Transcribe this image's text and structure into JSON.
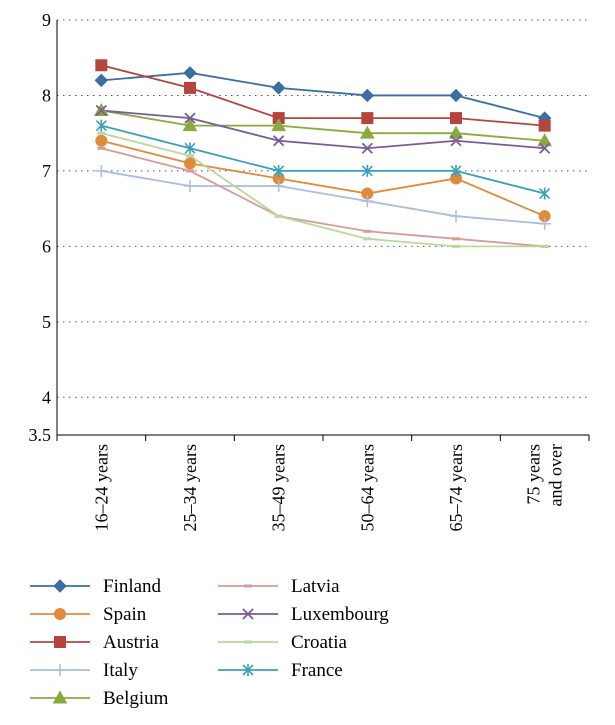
{
  "chart_data": {
    "type": "line",
    "title": "",
    "xlabel": "",
    "ylabel": "",
    "categories": [
      [
        "16–24 years"
      ],
      [
        "25–34 years"
      ],
      [
        "35–49 years"
      ],
      [
        "50–64 years"
      ],
      [
        "65–74 years"
      ],
      [
        "75 years",
        "and over"
      ]
    ],
    "ylim": [
      3.5,
      9
    ],
    "yticks": [
      "3.5",
      "4",
      "5",
      "6",
      "7",
      "8",
      "9"
    ],
    "ytick_values": [
      3.5,
      4,
      5,
      6,
      7,
      8,
      9
    ],
    "grid": true,
    "legend_position": "bottom",
    "series": [
      {
        "name": "Finland",
        "color": "#3a6ea5",
        "marker": "diamond",
        "values": [
          8.2,
          8.3,
          8.1,
          8.0,
          8.0,
          7.7
        ]
      },
      {
        "name": "Spain",
        "color": "#e08a3c",
        "marker": "circle",
        "values": [
          7.4,
          7.1,
          6.9,
          6.7,
          6.9,
          6.4
        ]
      },
      {
        "name": "Austria",
        "color": "#b5443f",
        "marker": "square",
        "values": [
          8.4,
          8.1,
          7.7,
          7.7,
          7.7,
          7.6
        ]
      },
      {
        "name": "Italy",
        "color": "#a8bde0",
        "marker": "plus",
        "values": [
          7.0,
          6.8,
          6.8,
          6.6,
          6.4,
          6.3
        ]
      },
      {
        "name": "Belgium",
        "color": "#8aaa3e",
        "marker": "triangle",
        "values": [
          7.8,
          7.6,
          7.6,
          7.5,
          7.5,
          7.4
        ]
      },
      {
        "name": "Latvia",
        "color": "#d99a9a",
        "marker": "dash",
        "values": [
          7.3,
          7.0,
          6.4,
          6.2,
          6.1,
          6.0
        ]
      },
      {
        "name": "Luxembourg",
        "color": "#7b5a9a",
        "marker": "x",
        "values": [
          7.8,
          7.7,
          7.4,
          7.3,
          7.4,
          7.3
        ]
      },
      {
        "name": "Croatia",
        "color": "#b8d99a",
        "marker": "dash",
        "values": [
          7.5,
          7.2,
          6.4,
          6.1,
          6.0,
          6.0
        ]
      },
      {
        "name": "France",
        "color": "#3aa0b8",
        "marker": "star",
        "values": [
          7.6,
          7.3,
          7.0,
          7.0,
          7.0,
          6.7
        ]
      }
    ]
  }
}
